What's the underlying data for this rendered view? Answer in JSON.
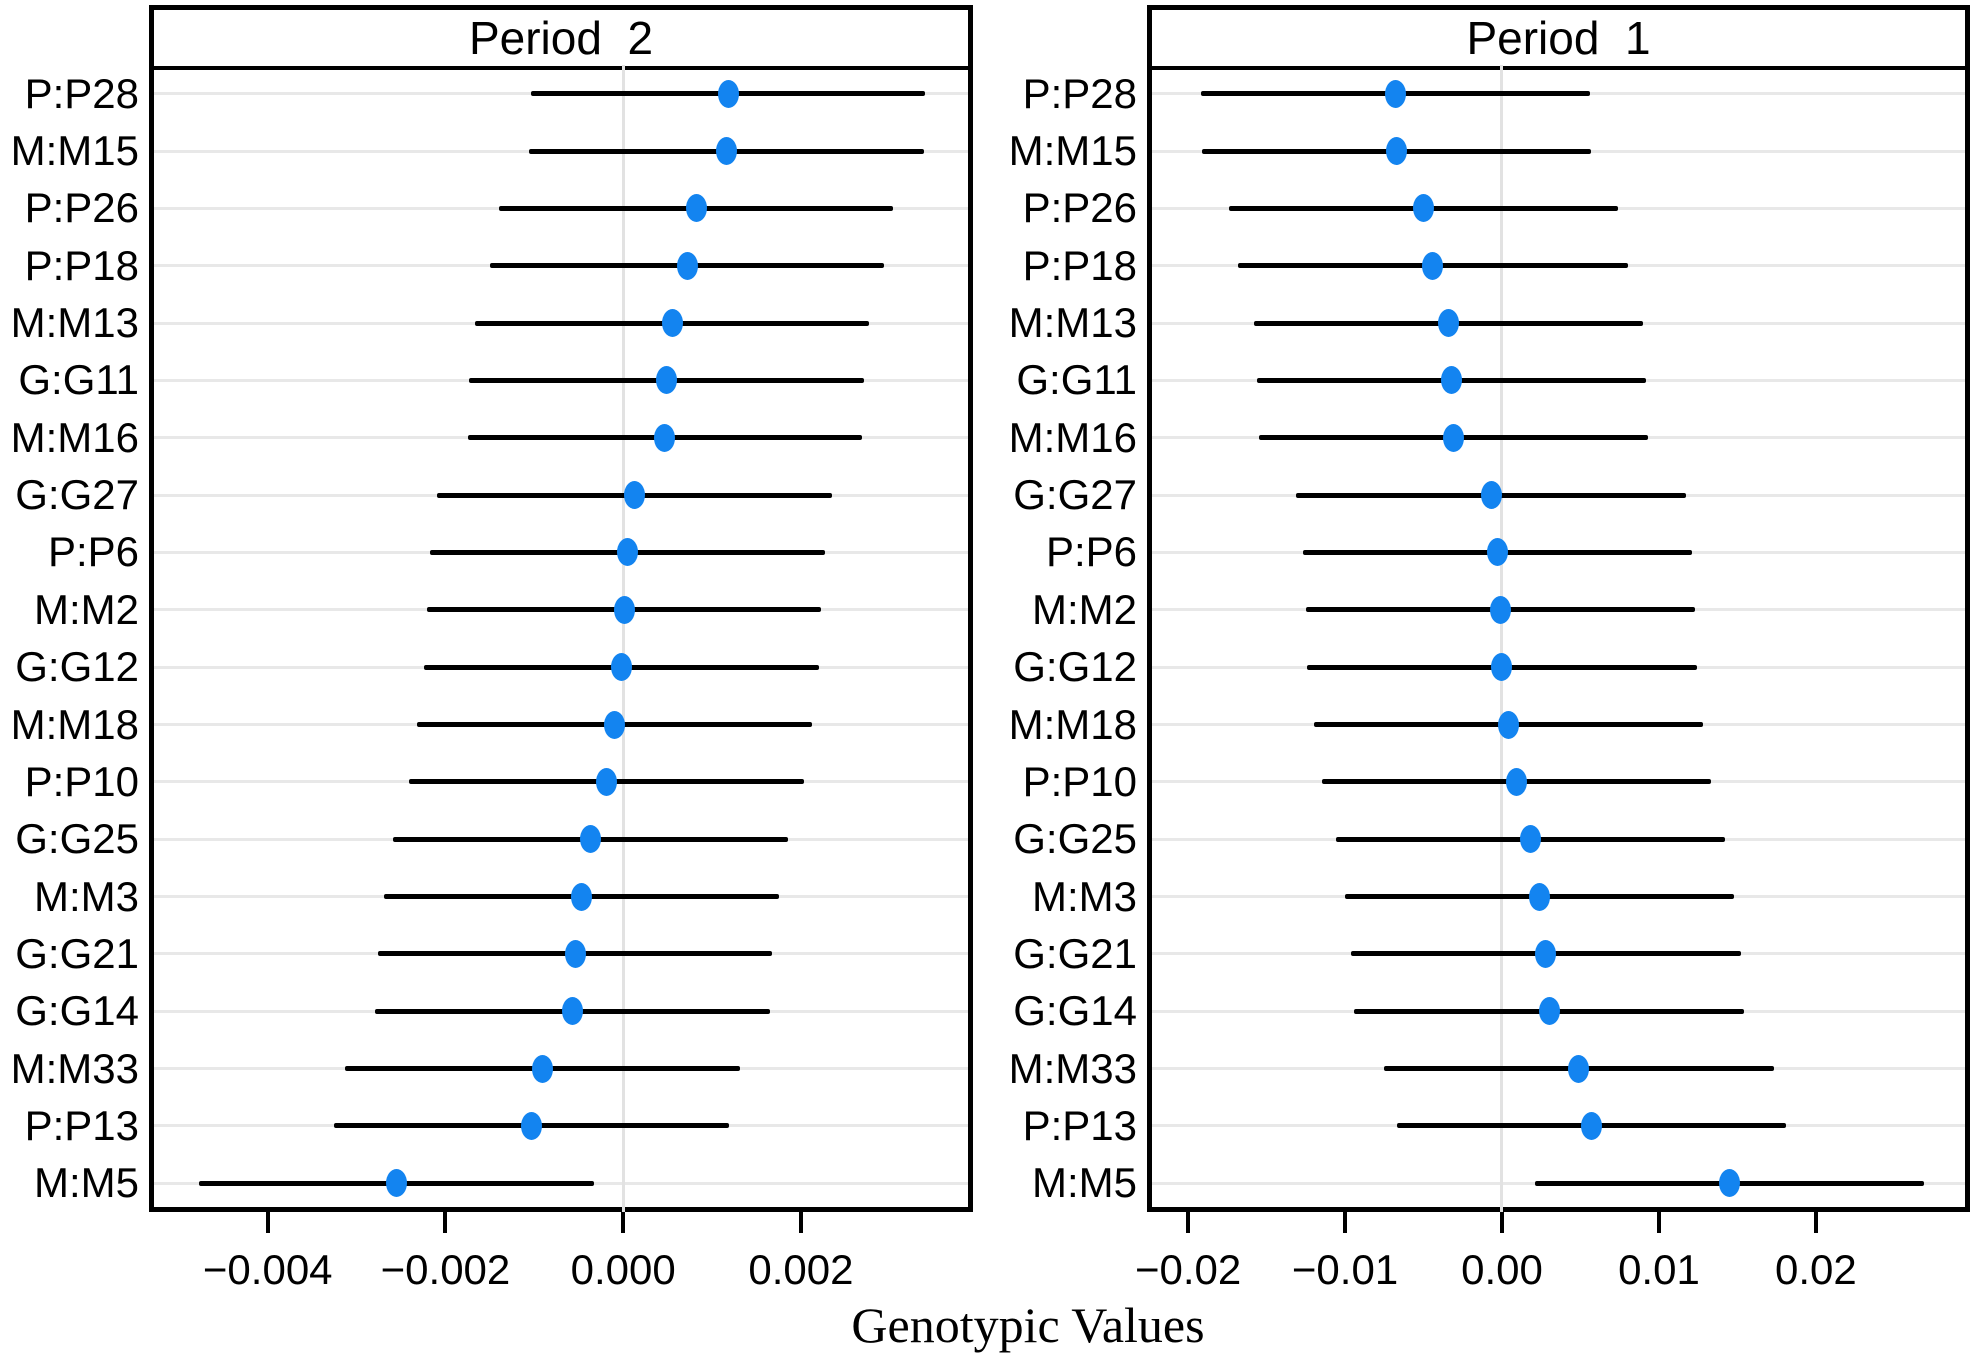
{
  "colors": {
    "dot": "#1384F0",
    "ci_line": "#000000",
    "gridline": "#E8E8E8",
    "panel_border": "#000000",
    "background": "#FFFFFF",
    "text": "#000000"
  },
  "chart_data": {
    "type": "scatter",
    "subtype": "dotplot-with-error-bars",
    "xlabel": "Genotypic Values",
    "ylabel": "",
    "grid": "horizontal-row-gridlines-plus-zero-line",
    "legend": "none",
    "categories": [
      "P:P28",
      "M:M15",
      "P:P26",
      "P:P18",
      "M:M13",
      "G:G11",
      "M:M16",
      "G:G27",
      "P:P6",
      "M:M2",
      "G:G12",
      "M:M18",
      "P:P10",
      "G:G25",
      "M:M3",
      "G:G21",
      "G:G14",
      "M:M33",
      "P:P13",
      "M:M5"
    ],
    "panels": [
      {
        "title": "Period  2",
        "position": "left",
        "xlim": [
          -0.00528,
          0.00388
        ],
        "xticks": [
          -0.004,
          -0.002,
          0.0,
          0.002
        ],
        "xtick_labels": [
          "−0.004",
          "−0.002",
          "0.000",
          "0.002"
        ],
        "ci_half_width": 0.00222,
        "estimates": [
          0.00118,
          0.00116,
          0.00082,
          0.00072,
          0.00055,
          0.00049,
          0.00047,
          0.00013,
          5e-05,
          1e-05,
          -2e-05,
          -0.0001,
          -0.00019,
          -0.00037,
          -0.00047,
          -0.00054,
          -0.00057,
          -0.00091,
          -0.00103,
          -0.00255
        ]
      },
      {
        "title": "Period  1",
        "position": "right",
        "xlim": [
          -0.0223,
          0.0295
        ],
        "xticks": [
          -0.02,
          -0.01,
          0.0,
          0.01,
          0.02
        ],
        "xtick_labels": [
          "−0.02",
          "−0.01",
          "0.00",
          "0.01",
          "0.02"
        ],
        "ci_half_width": 0.0124,
        "estimates": [
          -0.0068,
          -0.0067,
          -0.005,
          -0.0044,
          -0.0034,
          -0.0032,
          -0.0031,
          -0.0007,
          -0.0003,
          -0.0001,
          0.0,
          0.0004,
          0.0009,
          0.0018,
          0.0024,
          0.0028,
          0.003,
          0.0049,
          0.0057,
          0.0145
        ]
      }
    ]
  }
}
